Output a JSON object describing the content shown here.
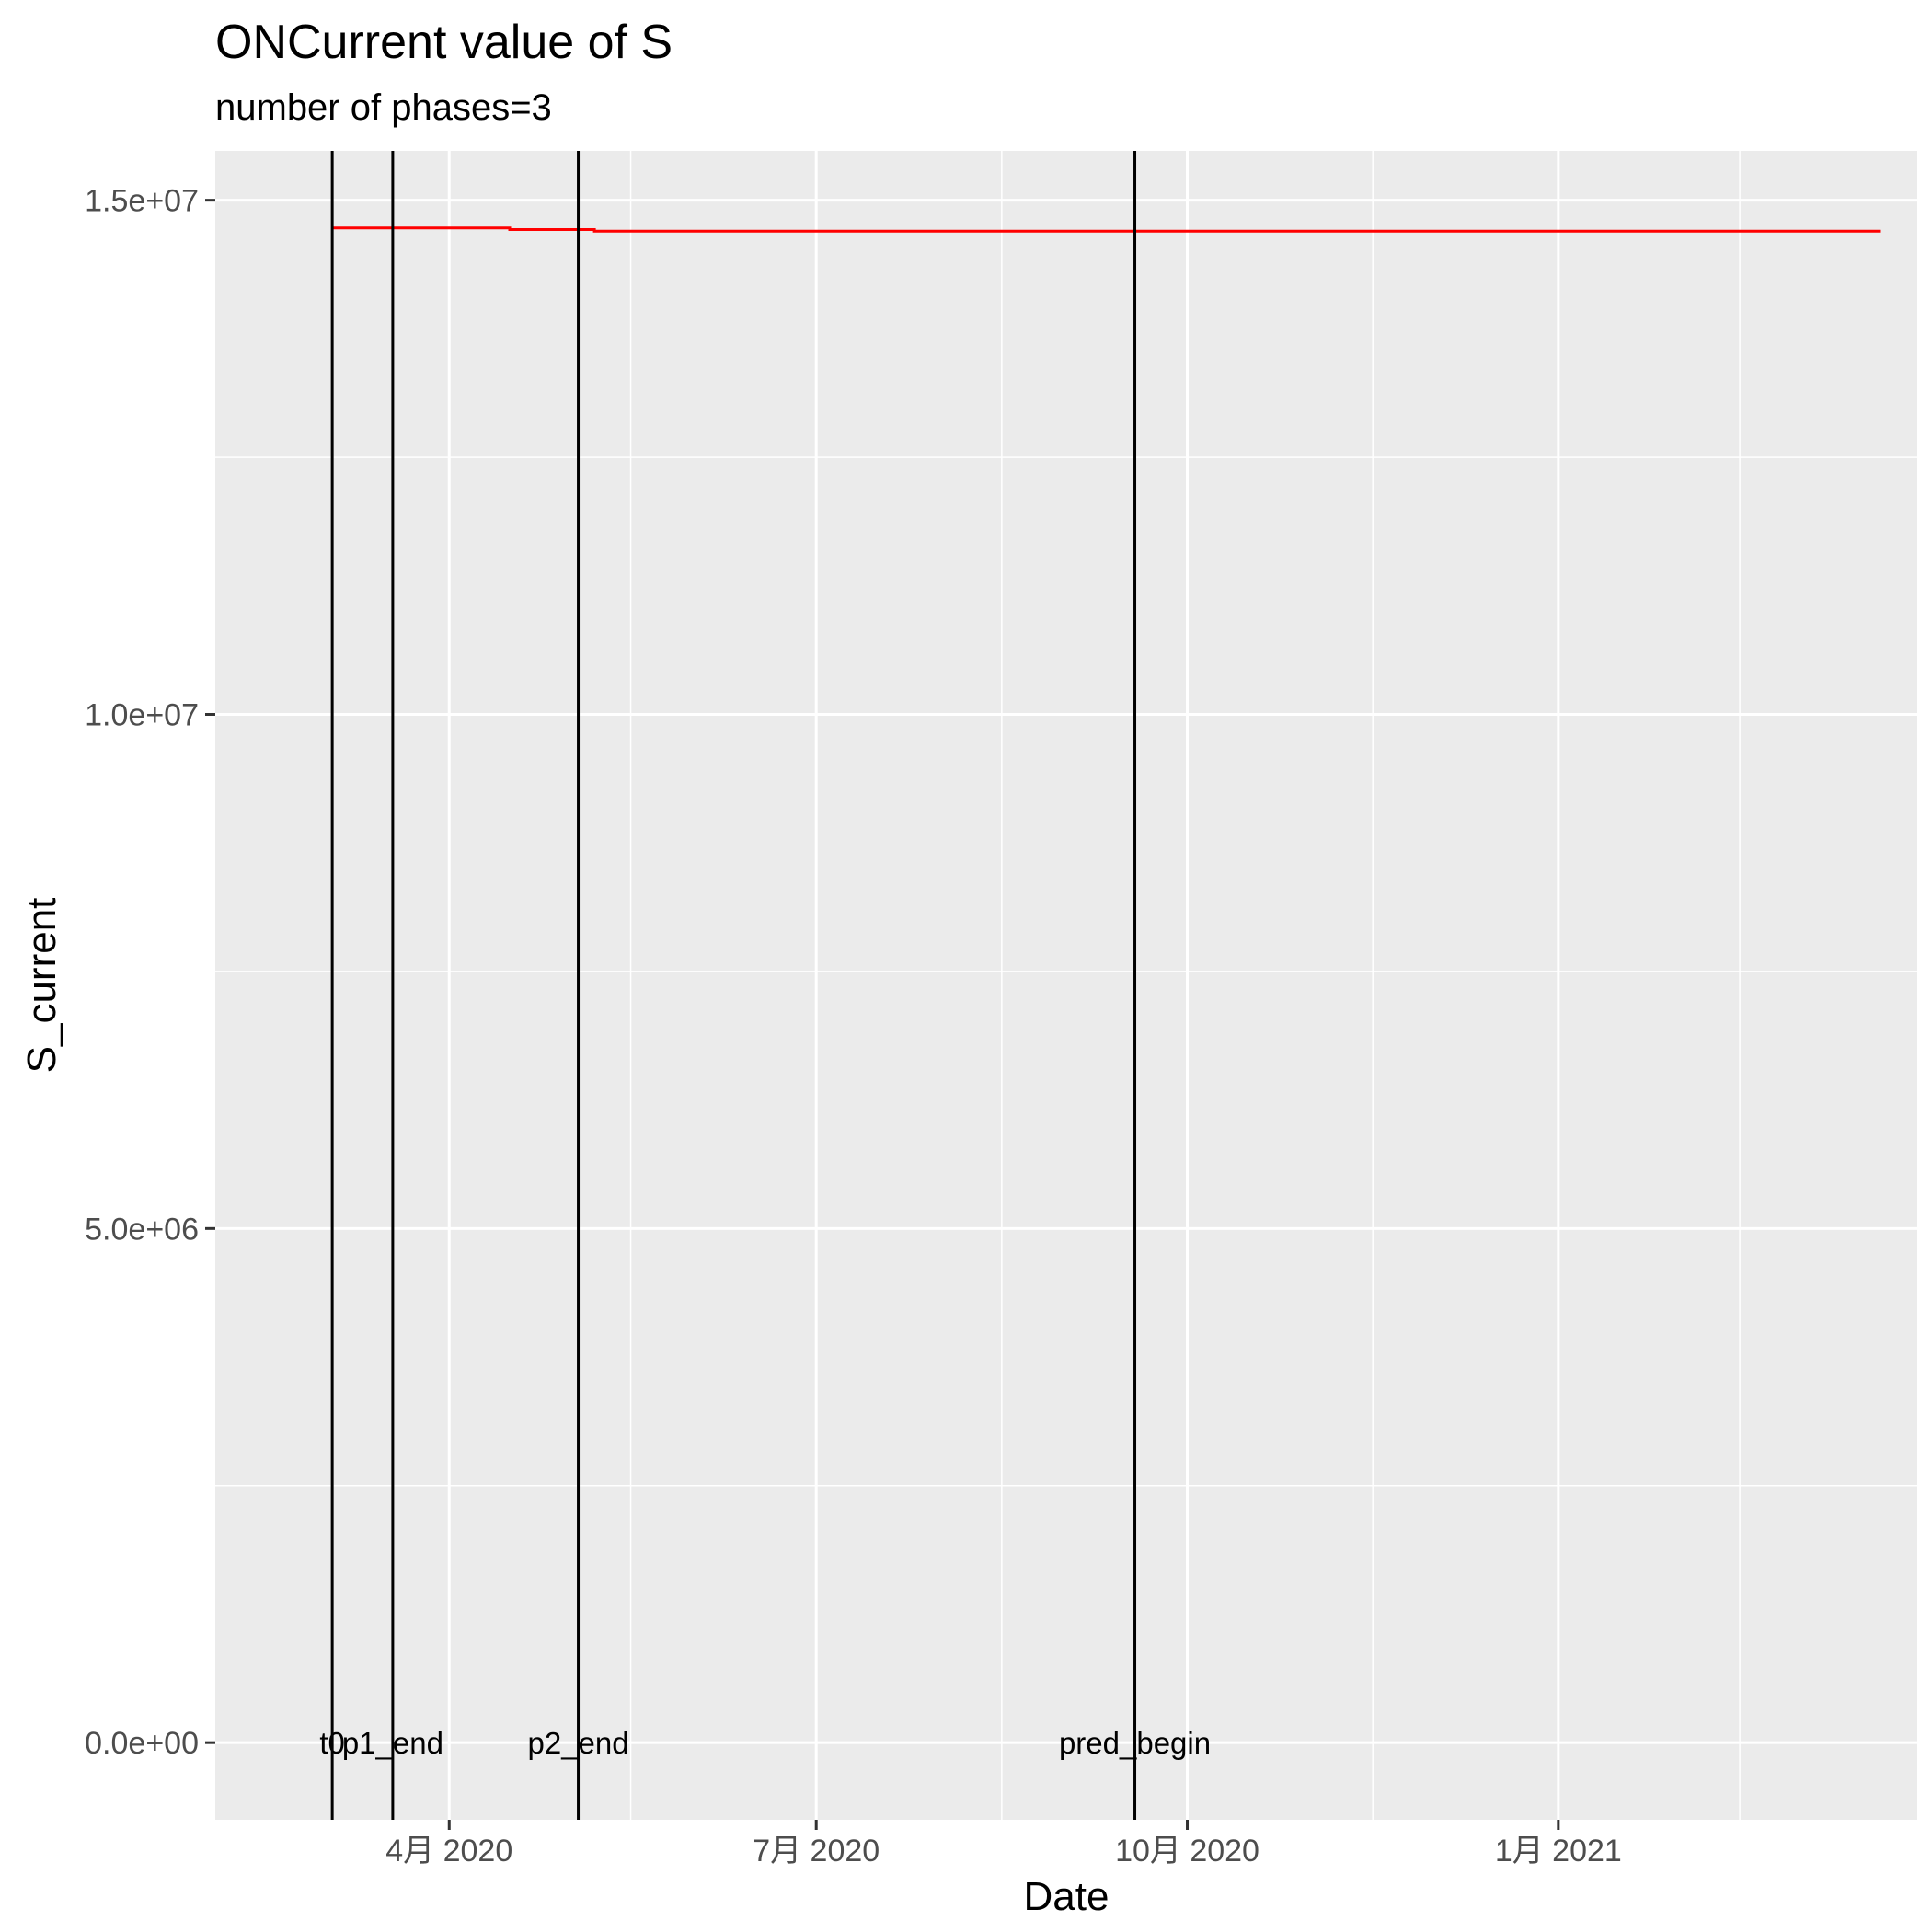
{
  "chart_data": {
    "type": "line",
    "title": "ONCurrent value of S",
    "subtitle": "number of phases=3",
    "xlabel": "Date",
    "ylabel": "S_current",
    "x_axis": {
      "type": "date",
      "range": [
        "2020-02-03",
        "2021-03-31"
      ],
      "ticks": [
        {
          "date": "2020-04-01",
          "label": "4月 2020"
        },
        {
          "date": "2020-07-01",
          "label": "7月 2020"
        },
        {
          "date": "2020-10-01",
          "label": "10月 2020"
        },
        {
          "date": "2021-01-01",
          "label": "1月 2021"
        }
      ],
      "minor_ticks": [
        "2020-05-16",
        "2020-08-16",
        "2020-11-16",
        "2021-02-15"
      ]
    },
    "y_axis": {
      "range": [
        -750000,
        15480000
      ],
      "ticks": [
        {
          "value": 0,
          "label": "0.0e+00"
        },
        {
          "value": 5000000,
          "label": "5.0e+06"
        },
        {
          "value": 10000000,
          "label": "1.0e+07"
        },
        {
          "value": 15000000,
          "label": "1.5e+07"
        }
      ],
      "minor_ticks": [
        2500000,
        7500000,
        12500000
      ]
    },
    "grid": true,
    "series": [
      {
        "name": "S_current",
        "color": "#ff0000",
        "points": [
          {
            "x": "2020-03-03",
            "y": 14730000
          },
          {
            "x": "2020-04-16",
            "y": 14730000
          },
          {
            "x": "2020-04-16",
            "y": 14715000
          },
          {
            "x": "2020-05-07",
            "y": 14715000
          },
          {
            "x": "2020-05-07",
            "y": 14700000
          },
          {
            "x": "2021-03-22",
            "y": 14700000
          }
        ]
      }
    ],
    "vlines": [
      {
        "x": "2020-03-03",
        "label": "t0",
        "color": "#000000"
      },
      {
        "x": "2020-03-18",
        "label": "p1_end",
        "color": "#000000"
      },
      {
        "x": "2020-05-03",
        "label": "p2_end",
        "color": "#000000"
      },
      {
        "x": "2020-09-18",
        "label": "pred_begin",
        "color": "#000000"
      }
    ],
    "vline_label_y": 0,
    "colors": {
      "panel_bg": "#ebebeb",
      "grid": "#ffffff",
      "tick_text": "#4d4d4d",
      "tick_mark": "#333333"
    }
  }
}
